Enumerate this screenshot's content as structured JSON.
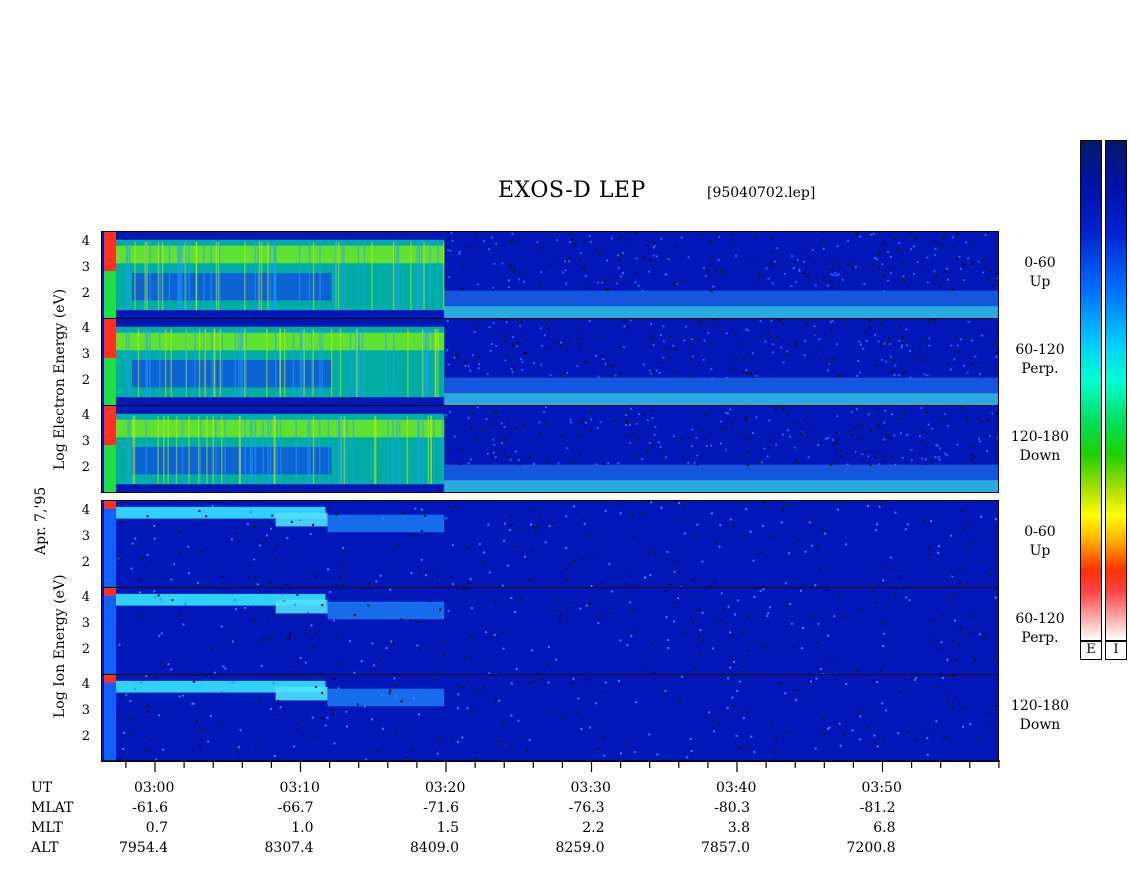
{
  "chart_data": {
    "type": "heatmap",
    "title": "EXOS-D LEP",
    "file_label": "[95040702.lep]",
    "date_label": "Apr. 7,'95",
    "ylabel_electron": "Log Electron Energy (eV)",
    "ylabel_ion": "Log Ion Energy (eV)",
    "yticks": [
      "4",
      "3",
      "2"
    ],
    "xticks": [
      "03:00",
      "03:10",
      "03:20",
      "03:30",
      "03:40",
      "03:50"
    ],
    "panels": [
      {
        "species": "Electron",
        "pitch": "0-60",
        "dir": "Up"
      },
      {
        "species": "Electron",
        "pitch": "60-120",
        "dir": "Perp."
      },
      {
        "species": "Electron",
        "pitch": "120-180",
        "dir": "Down"
      },
      {
        "species": "Ion",
        "pitch": "0-60",
        "dir": "Up"
      },
      {
        "species": "Ion",
        "pitch": "60-120",
        "dir": "Perp."
      },
      {
        "species": "Ion",
        "pitch": "120-180",
        "dir": "Down"
      }
    ],
    "colorbar_labels": [
      "E",
      "I"
    ],
    "orbit_table": {
      "rows": [
        {
          "name": "UT",
          "values": [
            "",
            "",
            "",
            "",
            "",
            ""
          ]
        },
        {
          "name": "MLAT",
          "values": [
            "-61.6",
            "-66.7",
            "-71.6",
            "-76.3",
            "-80.3",
            "-81.2"
          ]
        },
        {
          "name": "MLT",
          "values": [
            "0.7",
            "1.0",
            "1.5",
            "2.2",
            "3.8",
            "6.8"
          ]
        },
        {
          "name": "ALT",
          "values": [
            "7954.4",
            "8307.4",
            "8409.0",
            "8259.0",
            "7857.0",
            "7200.8"
          ]
        }
      ]
    }
  }
}
